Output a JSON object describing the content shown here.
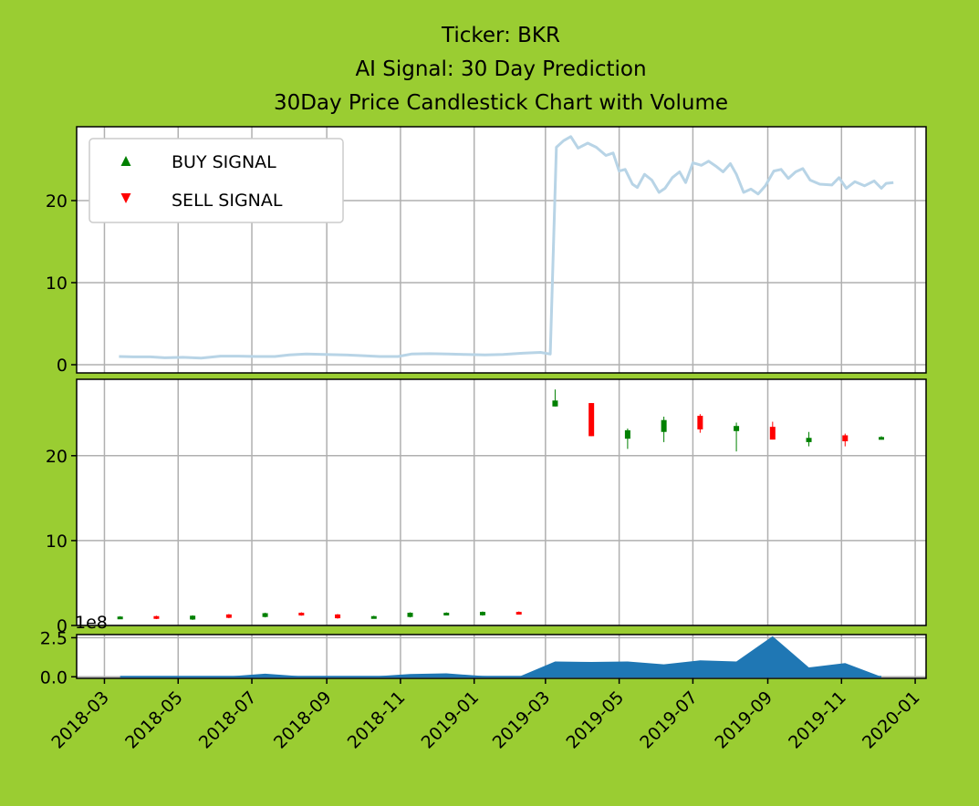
{
  "page": {
    "background": "#9acd32"
  },
  "title_lines": [
    "Ticker: BKR",
    "AI Signal: 30 Day Prediction",
    "30Day Price Candlestick Chart with Volume"
  ],
  "chart_data": [
    {
      "panel": "price",
      "type": "line",
      "color": "#b8d4e6",
      "x_range": [
        "2018-02-06",
        "2020-01-10"
      ],
      "ylim": [
        -1,
        29
      ],
      "yticks": [
        0,
        10,
        20
      ],
      "grid": true,
      "legend": {
        "placement": "upper-left",
        "entries": [
          {
            "label": "BUY SIGNAL",
            "color": "#008000",
            "marker": "triangle-up"
          },
          {
            "label": "SELL SIGNAL",
            "color": "#ff0000",
            "marker": "triangle-down"
          }
        ]
      },
      "points": [
        [
          "2018-03-13",
          1.0
        ],
        [
          "2018-03-25",
          0.95
        ],
        [
          "2018-04-08",
          0.95
        ],
        [
          "2018-04-20",
          0.85
        ],
        [
          "2018-05-05",
          0.9
        ],
        [
          "2018-05-20",
          0.8
        ],
        [
          "2018-06-05",
          1.05
        ],
        [
          "2018-06-20",
          1.05
        ],
        [
          "2018-07-05",
          1.0
        ],
        [
          "2018-07-20",
          1.0
        ],
        [
          "2018-08-01",
          1.2
        ],
        [
          "2018-08-15",
          1.3
        ],
        [
          "2018-08-30",
          1.25
        ],
        [
          "2018-09-15",
          1.2
        ],
        [
          "2018-10-01",
          1.1
        ],
        [
          "2018-10-15",
          1.0
        ],
        [
          "2018-10-30",
          1.0
        ],
        [
          "2018-11-10",
          1.3
        ],
        [
          "2018-11-25",
          1.35
        ],
        [
          "2018-12-10",
          1.3
        ],
        [
          "2018-12-25",
          1.25
        ],
        [
          "2019-01-10",
          1.2
        ],
        [
          "2019-01-25",
          1.25
        ],
        [
          "2019-02-10",
          1.4
        ],
        [
          "2019-02-25",
          1.5
        ],
        [
          "2019-03-05",
          1.3
        ],
        [
          "2019-03-10",
          26.5
        ],
        [
          "2019-03-16",
          27.3
        ],
        [
          "2019-03-22",
          27.8
        ],
        [
          "2019-03-28",
          26.4
        ],
        [
          "2019-04-05",
          27.0
        ],
        [
          "2019-04-12",
          26.5
        ],
        [
          "2019-04-20",
          25.5
        ],
        [
          "2019-04-26",
          25.8
        ],
        [
          "2019-05-01",
          23.6
        ],
        [
          "2019-05-06",
          23.8
        ],
        [
          "2019-05-12",
          22.0
        ],
        [
          "2019-05-16",
          21.6
        ],
        [
          "2019-05-22",
          23.2
        ],
        [
          "2019-05-28",
          22.5
        ],
        [
          "2019-06-03",
          21.0
        ],
        [
          "2019-06-08",
          21.5
        ],
        [
          "2019-06-14",
          22.8
        ],
        [
          "2019-06-20",
          23.5
        ],
        [
          "2019-06-25",
          22.2
        ],
        [
          "2019-07-01",
          24.6
        ],
        [
          "2019-07-08",
          24.3
        ],
        [
          "2019-07-14",
          24.8
        ],
        [
          "2019-07-20",
          24.2
        ],
        [
          "2019-07-26",
          23.5
        ],
        [
          "2019-08-01",
          24.5
        ],
        [
          "2019-08-06",
          23.2
        ],
        [
          "2019-08-12",
          21.0
        ],
        [
          "2019-08-18",
          21.4
        ],
        [
          "2019-08-24",
          20.8
        ],
        [
          "2019-08-30",
          21.8
        ],
        [
          "2019-09-06",
          23.6
        ],
        [
          "2019-09-12",
          23.8
        ],
        [
          "2019-09-18",
          22.7
        ],
        [
          "2019-09-24",
          23.5
        ],
        [
          "2019-09-30",
          23.9
        ],
        [
          "2019-10-06",
          22.5
        ],
        [
          "2019-10-14",
          22.0
        ],
        [
          "2019-10-24",
          21.9
        ],
        [
          "2019-10-30",
          22.8
        ],
        [
          "2019-11-05",
          21.5
        ],
        [
          "2019-11-12",
          22.3
        ],
        [
          "2019-11-20",
          21.8
        ],
        [
          "2019-11-28",
          22.4
        ],
        [
          "2019-12-04",
          21.5
        ],
        [
          "2019-12-08",
          22.1
        ],
        [
          "2019-12-14",
          22.2
        ]
      ]
    },
    {
      "panel": "candles",
      "type": "candlestick",
      "up_color": "#008000",
      "down_color": "#ff0000",
      "ylim": [
        0,
        29
      ],
      "yticks": [
        0,
        10,
        20
      ],
      "grid": true,
      "candles": [
        {
          "date": "2018-03-14",
          "open": 1.0,
          "close": 1.05,
          "high": 1.1,
          "low": 0.95
        },
        {
          "date": "2018-04-13",
          "open": 1.1,
          "close": 0.8,
          "high": 1.15,
          "low": 0.75
        },
        {
          "date": "2018-05-13",
          "open": 0.7,
          "close": 1.15,
          "high": 1.2,
          "low": 0.65
        },
        {
          "date": "2018-06-12",
          "open": 1.3,
          "close": 0.9,
          "high": 1.35,
          "low": 0.85
        },
        {
          "date": "2018-07-12",
          "open": 1.0,
          "close": 1.45,
          "high": 1.5,
          "low": 0.95
        },
        {
          "date": "2018-08-11",
          "open": 1.5,
          "close": 1.2,
          "high": 1.55,
          "low": 1.15
        },
        {
          "date": "2018-09-10",
          "open": 1.3,
          "close": 0.85,
          "high": 1.35,
          "low": 0.8
        },
        {
          "date": "2018-10-10",
          "open": 0.9,
          "close": 1.1,
          "high": 1.15,
          "low": 0.85
        },
        {
          "date": "2018-11-09",
          "open": 1.0,
          "close": 1.5,
          "high": 1.55,
          "low": 0.95
        },
        {
          "date": "2018-12-09",
          "open": 1.35,
          "close": 1.5,
          "high": 1.55,
          "low": 1.3
        },
        {
          "date": "2019-01-08",
          "open": 1.2,
          "close": 1.6,
          "high": 1.65,
          "low": 1.15
        },
        {
          "date": "2019-02-07",
          "open": 1.6,
          "close": 1.35,
          "high": 1.65,
          "low": 1.3
        },
        {
          "date": "2019-03-09",
          "open": 25.8,
          "close": 26.5,
          "high": 27.8,
          "low": 25.8
        },
        {
          "date": "2019-04-08",
          "open": 26.2,
          "close": 22.3,
          "high": 26.2,
          "low": 22.3
        },
        {
          "date": "2019-05-08",
          "open": 22.0,
          "close": 23.0,
          "high": 23.2,
          "low": 20.8
        },
        {
          "date": "2019-06-07",
          "open": 22.8,
          "close": 24.2,
          "high": 24.6,
          "low": 21.6
        },
        {
          "date": "2019-07-07",
          "open": 24.7,
          "close": 23.1,
          "high": 24.9,
          "low": 22.7
        },
        {
          "date": "2019-08-06",
          "open": 22.9,
          "close": 23.5,
          "high": 23.9,
          "low": 20.5
        },
        {
          "date": "2019-09-05",
          "open": 23.4,
          "close": 21.9,
          "high": 24.0,
          "low": 21.9
        },
        {
          "date": "2019-10-05",
          "open": 21.6,
          "close": 22.1,
          "high": 22.8,
          "low": 21.1
        },
        {
          "date": "2019-11-04",
          "open": 22.4,
          "close": 21.7,
          "high": 22.6,
          "low": 21.1
        },
        {
          "date": "2019-12-04",
          "open": 21.9,
          "close": 22.2,
          "high": 22.3,
          "low": 21.9
        }
      ]
    },
    {
      "panel": "volume",
      "type": "area",
      "color": "#1f77b4",
      "scale_label": "1e8",
      "ylim": [
        -0.1,
        2.7
      ],
      "yticks": [
        0.0,
        2.5
      ],
      "ytick_labels": [
        "0.0",
        "2.5"
      ],
      "grid": true,
      "points": [
        [
          "2018-03-14",
          0.0
        ],
        [
          "2018-04-13",
          0.03
        ],
        [
          "2018-05-13",
          0.0
        ],
        [
          "2018-06-12",
          0.02
        ],
        [
          "2018-07-12",
          0.2
        ],
        [
          "2018-08-11",
          0.03
        ],
        [
          "2018-09-10",
          0.0
        ],
        [
          "2018-10-10",
          0.02
        ],
        [
          "2018-11-09",
          0.18
        ],
        [
          "2018-12-09",
          0.22
        ],
        [
          "2019-01-08",
          0.05
        ],
        [
          "2019-02-07",
          0.0
        ],
        [
          "2019-03-09",
          0.98
        ],
        [
          "2019-04-08",
          0.95
        ],
        [
          "2019-05-08",
          0.98
        ],
        [
          "2019-06-07",
          0.8
        ],
        [
          "2019-07-07",
          1.05
        ],
        [
          "2019-08-06",
          0.98
        ],
        [
          "2019-09-05",
          2.6
        ],
        [
          "2019-10-05",
          0.6
        ],
        [
          "2019-11-04",
          0.88
        ],
        [
          "2019-12-04",
          0.0
        ]
      ]
    }
  ],
  "x_axis": {
    "ticks": [
      "2018-03",
      "2018-05",
      "2018-07",
      "2018-09",
      "2018-11",
      "2019-01",
      "2019-03",
      "2019-05",
      "2019-07",
      "2019-09",
      "2019-11",
      "2020-01"
    ]
  }
}
